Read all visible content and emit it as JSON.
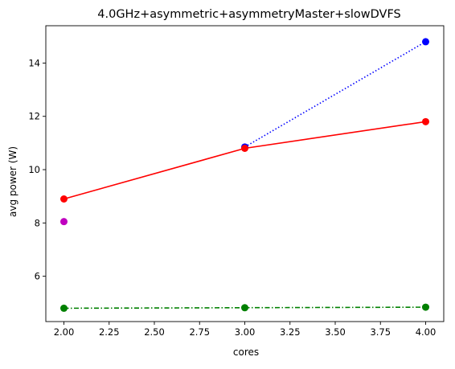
{
  "chart_data": {
    "type": "line",
    "title": "4.0GHz+asymmetric+asymmetryMaster+slowDVFS",
    "xlabel": "cores",
    "ylabel": "avg power (W)",
    "xlim": [
      1.9,
      4.1
    ],
    "ylim": [
      4.3,
      15.4
    ],
    "x_ticks": [
      2.0,
      2.25,
      2.5,
      2.75,
      3.0,
      3.25,
      3.5,
      3.75,
      4.0
    ],
    "x_tick_labels": [
      "2.00",
      "2.25",
      "2.50",
      "2.75",
      "3.00",
      "3.25",
      "3.50",
      "3.75",
      "4.00"
    ],
    "y_ticks": [
      6,
      8,
      10,
      12,
      14
    ],
    "y_tick_labels": [
      "6",
      "8",
      "10",
      "12",
      "14"
    ],
    "grid": false,
    "series": [
      {
        "x": [
          3,
          4
        ],
        "values": [
          10.85,
          14.8
        ],
        "color": "#0000ff",
        "line_style": "dotted",
        "marker": "circle"
      },
      {
        "x": [
          2,
          3,
          4
        ],
        "values": [
          4.8,
          4.82,
          4.84
        ],
        "color": "#008000",
        "line_style": "dashdot",
        "marker": "circle"
      },
      {
        "x": [
          2
        ],
        "values": [
          8.05
        ],
        "color": "#bf00bf",
        "line_style": "none",
        "marker": "circle"
      },
      {
        "x": [
          2,
          3,
          4
        ],
        "values": [
          8.9,
          10.8,
          11.8
        ],
        "color": "#ff0000",
        "line_style": "solid",
        "marker": "circle"
      }
    ]
  }
}
